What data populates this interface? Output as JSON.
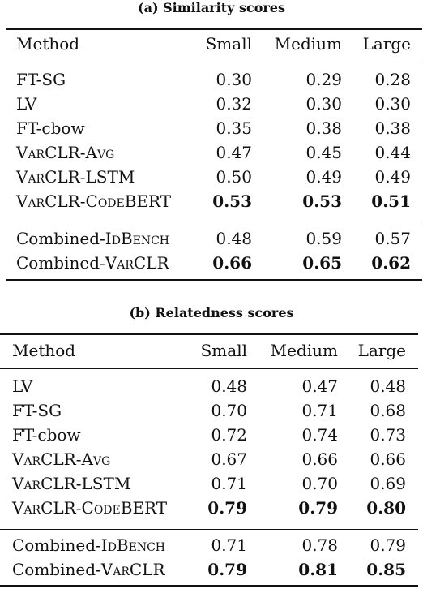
{
  "tables": [
    {
      "caption": "(a) Similarity scores",
      "headers": [
        "Method",
        "Small",
        "Medium",
        "Large"
      ],
      "groups": [
        [
          {
            "method": [
              {
                "t": "FT-SG"
              }
            ],
            "values": [
              "0.30",
              "0.29",
              "0.28"
            ],
            "bold": [
              false,
              false,
              false
            ]
          },
          {
            "method": [
              {
                "t": "LV"
              }
            ],
            "values": [
              "0.32",
              "0.30",
              "0.30"
            ],
            "bold": [
              false,
              false,
              false
            ]
          },
          {
            "method": [
              {
                "t": "FT-cbow"
              }
            ],
            "values": [
              "0.35",
              "0.38",
              "0.38"
            ],
            "bold": [
              false,
              false,
              false
            ]
          },
          {
            "method": [
              {
                "t": "VarCLR",
                "sc": true
              },
              {
                "t": "-"
              },
              {
                "t": "Avg",
                "sc": true
              }
            ],
            "values": [
              "0.47",
              "0.45",
              "0.44"
            ],
            "bold": [
              false,
              false,
              false
            ]
          },
          {
            "method": [
              {
                "t": "VarCLR",
                "sc": true
              },
              {
                "t": "-LSTM"
              }
            ],
            "values": [
              "0.50",
              "0.49",
              "0.49"
            ],
            "bold": [
              false,
              false,
              false
            ]
          },
          {
            "method": [
              {
                "t": "VarCLR",
                "sc": true
              },
              {
                "t": "-"
              },
              {
                "t": "Code",
                "sc": true
              },
              {
                "t": "BERT"
              }
            ],
            "values": [
              "0.53",
              "0.53",
              "0.51"
            ],
            "bold": [
              true,
              true,
              true
            ]
          }
        ],
        [
          {
            "method": [
              {
                "t": "Combined-"
              },
              {
                "t": "IdBench",
                "sc": true
              }
            ],
            "values": [
              "0.48",
              "0.59",
              "0.57"
            ],
            "bold": [
              false,
              false,
              false
            ]
          },
          {
            "method": [
              {
                "t": "Combined-"
              },
              {
                "t": "VarCLR",
                "sc": true
              }
            ],
            "values": [
              "0.66",
              "0.65",
              "0.62"
            ],
            "bold": [
              true,
              true,
              true
            ]
          }
        ]
      ]
    },
    {
      "caption": "(b) Relatedness scores",
      "headers": [
        "Method",
        "Small",
        "Medium",
        "Large"
      ],
      "groups": [
        [
          {
            "method": [
              {
                "t": "LV"
              }
            ],
            "values": [
              "0.48",
              "0.47",
              "0.48"
            ],
            "bold": [
              false,
              false,
              false
            ]
          },
          {
            "method": [
              {
                "t": "FT-SG"
              }
            ],
            "values": [
              "0.70",
              "0.71",
              "0.68"
            ],
            "bold": [
              false,
              false,
              false
            ]
          },
          {
            "method": [
              {
                "t": "FT-cbow"
              }
            ],
            "values": [
              "0.72",
              "0.74",
              "0.73"
            ],
            "bold": [
              false,
              false,
              false
            ]
          },
          {
            "method": [
              {
                "t": "VarCLR",
                "sc": true
              },
              {
                "t": "-"
              },
              {
                "t": "Avg",
                "sc": true
              }
            ],
            "values": [
              "0.67",
              "0.66",
              "0.66"
            ],
            "bold": [
              false,
              false,
              false
            ]
          },
          {
            "method": [
              {
                "t": "VarCLR",
                "sc": true
              },
              {
                "t": "-LSTM"
              }
            ],
            "values": [
              "0.71",
              "0.70",
              "0.69"
            ],
            "bold": [
              false,
              false,
              false
            ]
          },
          {
            "method": [
              {
                "t": "VarCLR",
                "sc": true
              },
              {
                "t": "-"
              },
              {
                "t": "Code",
                "sc": true
              },
              {
                "t": "BERT"
              }
            ],
            "values": [
              "0.79",
              "0.79",
              "0.80"
            ],
            "bold": [
              true,
              true,
              true
            ]
          }
        ],
        [
          {
            "method": [
              {
                "t": "Combined-"
              },
              {
                "t": "IdBench",
                "sc": true
              }
            ],
            "values": [
              "0.71",
              "0.78",
              "0.79"
            ],
            "bold": [
              false,
              false,
              false
            ]
          },
          {
            "method": [
              {
                "t": "Combined-"
              },
              {
                "t": "VarCLR",
                "sc": true
              }
            ],
            "values": [
              "0.79",
              "0.81",
              "0.85"
            ],
            "bold": [
              true,
              true,
              true
            ]
          }
        ]
      ]
    }
  ]
}
